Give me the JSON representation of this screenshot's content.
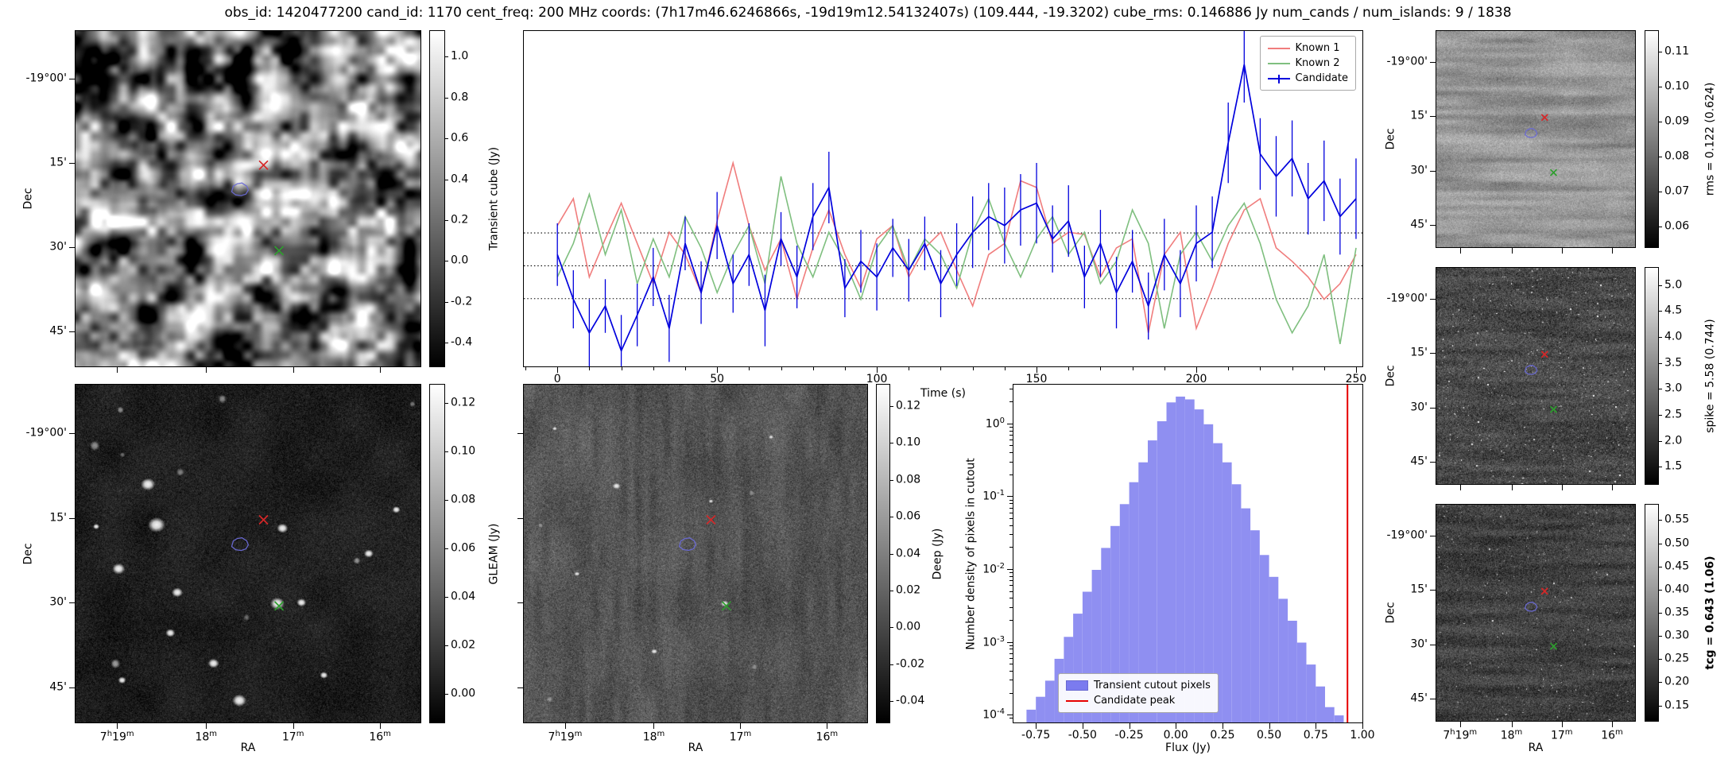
{
  "title": "obs_id: 1420477200 cand_id: 1170 cent_freq: 200 MHz coords: (7h17m46.6246866s, -19d19m12.54132407s) (109.444, -19.3202) cube_rms: 0.146886 Jy num_cands / num_islands: 9 / 1838",
  "axes": {
    "dec_label": "Dec",
    "ra_label": "RA",
    "dec_ticks": [
      "-19°00'",
      "15'",
      "30'",
      "45'"
    ],
    "ra_ticks": [
      "7h19m",
      "18m",
      "17m",
      "16m"
    ]
  },
  "markers": {
    "candidate": {
      "symbol": "x",
      "color": "#d62728",
      "fx": 0.545,
      "fy": 0.4
    },
    "known_source": {
      "symbol": "x",
      "color": "#2e9e2e",
      "fx": 0.59,
      "fy": 0.655
    },
    "island_contour": {
      "color": "#6a6ad4",
      "fx": 0.478,
      "fy": 0.472
    }
  },
  "panels": {
    "transient": {
      "colorbar_label": "Transient cube (Jy)",
      "colorbar_ticks": [
        "1.0",
        "0.8",
        "0.6",
        "0.4",
        "0.2",
        "0.0",
        "-0.2",
        "-0.4"
      ],
      "colorbar_range": [
        -0.52,
        1.13
      ]
    },
    "gleam": {
      "colorbar_label": "GLEAM (Jy)",
      "colorbar_ticks": [
        "0.12",
        "0.10",
        "0.08",
        "0.06",
        "0.04",
        "0.02",
        "0.00"
      ],
      "colorbar_range": [
        -0.012,
        0.128
      ]
    },
    "deep": {
      "colorbar_label": "Deep (Jy)",
      "colorbar_ticks": [
        "0.12",
        "0.10",
        "0.08",
        "0.06",
        "0.04",
        "0.02",
        "0.00",
        "-0.02",
        "-0.04"
      ],
      "colorbar_range": [
        -0.052,
        0.132
      ]
    },
    "rms": {
      "colorbar_label": "rms = 0.122 (0.624)",
      "colorbar_ticks": [
        "0.11",
        "0.10",
        "0.09",
        "0.08",
        "0.07",
        "0.06"
      ],
      "colorbar_range": [
        0.054,
        0.116
      ]
    },
    "spike": {
      "colorbar_label": "spike = 5.58 (0.744)",
      "colorbar_ticks": [
        "5.0",
        "4.5",
        "4.0",
        "3.5",
        "3.0",
        "2.5",
        "2.0",
        "1.5"
      ],
      "colorbar_range": [
        1.15,
        5.35
      ]
    },
    "tcg": {
      "colorbar_label": "tcg = 0.643 (1.06)",
      "emphasis": true,
      "colorbar_ticks": [
        "0.55",
        "0.50",
        "0.45",
        "0.40",
        "0.35",
        "0.30",
        "0.25",
        "0.20",
        "0.15"
      ],
      "colorbar_range": [
        0.115,
        0.585
      ]
    }
  },
  "chart_data": [
    {
      "type": "line",
      "title": "",
      "xlabel": "Time (s)",
      "ylabel": "",
      "xlim": [
        -10.5,
        252
      ],
      "ylim": [
        -0.45,
        1.05
      ],
      "x_ticks": [
        0,
        50,
        100,
        150,
        200,
        250
      ],
      "hlines": [
        0.147,
        0.0,
        -0.147
      ],
      "legend_position": "upper right",
      "x": [
        0,
        5,
        10,
        15,
        20,
        25,
        30,
        35,
        40,
        45,
        50,
        55,
        60,
        65,
        70,
        75,
        80,
        85,
        90,
        95,
        100,
        105,
        110,
        115,
        120,
        125,
        130,
        135,
        140,
        145,
        150,
        155,
        160,
        165,
        170,
        175,
        180,
        185,
        190,
        195,
        200,
        205,
        210,
        215,
        220,
        225,
        230,
        235,
        240,
        245,
        250
      ],
      "series": [
        {
          "name": "Known 1",
          "color": "#f07d7d",
          "values": [
            0.18,
            0.3,
            -0.05,
            0.12,
            0.28,
            0.1,
            -0.08,
            0.15,
            0.05,
            -0.12,
            0.2,
            0.46,
            0.18,
            -0.02,
            0.12,
            -0.15,
            0.08,
            0.25,
            0.05,
            -0.1,
            0.12,
            0.18,
            -0.05,
            0.08,
            0.15,
            -0.02,
            -0.18,
            0.05,
            0.1,
            0.38,
            0.35,
            0.1,
            0.15,
            0.14,
            -0.05,
            0.08,
            0.12,
            -0.3,
            0.05,
            0.15,
            -0.28,
            -0.1,
            0.1,
            0.25,
            0.3,
            0.08,
            0.02,
            -0.05,
            -0.15,
            -0.08,
            0.05
          ]
        },
        {
          "name": "Known 2",
          "color": "#7fbf7f",
          "values": [
            -0.05,
            0.1,
            0.32,
            0.05,
            0.25,
            -0.08,
            0.12,
            -0.05,
            0.22,
            0.08,
            -0.12,
            0.05,
            0.18,
            -0.08,
            0.4,
            0.1,
            -0.05,
            0.15,
            0.02,
            -0.15,
            0.08,
            0.18,
            -0.02,
            0.12,
            0.05,
            -0.1,
            0.15,
            0.3,
            0.1,
            -0.05,
            0.12,
            0.22,
            0.05,
            0.15,
            -0.08,
            0.02,
            0.25,
            0.1,
            -0.28,
            0.05,
            0.15,
            0.02,
            0.18,
            0.28,
            0.1,
            -0.15,
            -0.3,
            -0.18,
            0.05,
            -0.35,
            0.08
          ]
        },
        {
          "name": "Candidate",
          "color": "#0000dd",
          "values": [
            0.05,
            -0.15,
            -0.3,
            -0.18,
            -0.38,
            -0.22,
            -0.05,
            -0.28,
            0.1,
            -0.12,
            0.18,
            -0.08,
            0.05,
            -0.2,
            0.12,
            -0.05,
            0.22,
            0.35,
            -0.1,
            0.02,
            -0.05,
            0.08,
            -0.02,
            0.1,
            -0.08,
            0.05,
            0.15,
            0.22,
            0.18,
            0.25,
            0.28,
            0.12,
            0.2,
            -0.05,
            0.1,
            -0.12,
            0.02,
            -0.18,
            0.05,
            -0.08,
            0.1,
            0.15,
            0.55,
            0.9,
            0.5,
            0.4,
            0.48,
            0.3,
            0.38,
            0.22,
            0.3
          ],
          "yerr": [
            0.14,
            0.13,
            0.15,
            0.12,
            0.16,
            0.14,
            0.13,
            0.15,
            0.12,
            0.14,
            0.15,
            0.13,
            0.14,
            0.16,
            0.12,
            0.14,
            0.15,
            0.16,
            0.13,
            0.14,
            0.15,
            0.13,
            0.14,
            0.12,
            0.15,
            0.14,
            0.16,
            0.15,
            0.17,
            0.16,
            0.18,
            0.15,
            0.16,
            0.14,
            0.15,
            0.16,
            0.14,
            0.15,
            0.16,
            0.15,
            0.17,
            0.16,
            0.18,
            0.17,
            0.16,
            0.18,
            0.17,
            0.16,
            0.18,
            0.17,
            0.18
          ]
        }
      ]
    },
    {
      "type": "bar",
      "xlabel": "Flux (Jy)",
      "ylabel": "Number density of pixels in cutout",
      "yscale": "log",
      "xlim": [
        -0.87,
        1.0
      ],
      "ylim": [
        8e-05,
        3.5
      ],
      "x_ticks": [
        "-0.75",
        "-0.50",
        "-0.25",
        "0.00",
        "0.25",
        "0.50",
        "0.75",
        "1.00"
      ],
      "y_tick_exponents": [
        0,
        -1,
        -2,
        -3,
        -4
      ],
      "bar_color": "#7b7bef",
      "bin_width": 0.05,
      "bin_centers": [
        -0.775,
        -0.725,
        -0.675,
        -0.625,
        -0.575,
        -0.525,
        -0.475,
        -0.425,
        -0.375,
        -0.325,
        -0.275,
        -0.225,
        -0.175,
        -0.125,
        -0.075,
        -0.025,
        0.025,
        0.075,
        0.125,
        0.175,
        0.225,
        0.275,
        0.325,
        0.375,
        0.425,
        0.475,
        0.525,
        0.575,
        0.625,
        0.675,
        0.725,
        0.775,
        0.825,
        0.875
      ],
      "densities": [
        0.00012,
        0.00018,
        0.0003,
        0.0006,
        0.0012,
        0.0025,
        0.005,
        0.01,
        0.02,
        0.04,
        0.08,
        0.16,
        0.3,
        0.6,
        1.1,
        2.0,
        2.4,
        2.2,
        1.6,
        1.0,
        0.55,
        0.3,
        0.15,
        0.07,
        0.035,
        0.016,
        0.008,
        0.004,
        0.002,
        0.001,
        0.0005,
        0.00025,
        0.00013,
        0.0001
      ],
      "vline": {
        "x": 0.92,
        "color": "#e60000"
      },
      "legend": [
        "Transient cutout pixels",
        "Candidate peak"
      ]
    }
  ]
}
